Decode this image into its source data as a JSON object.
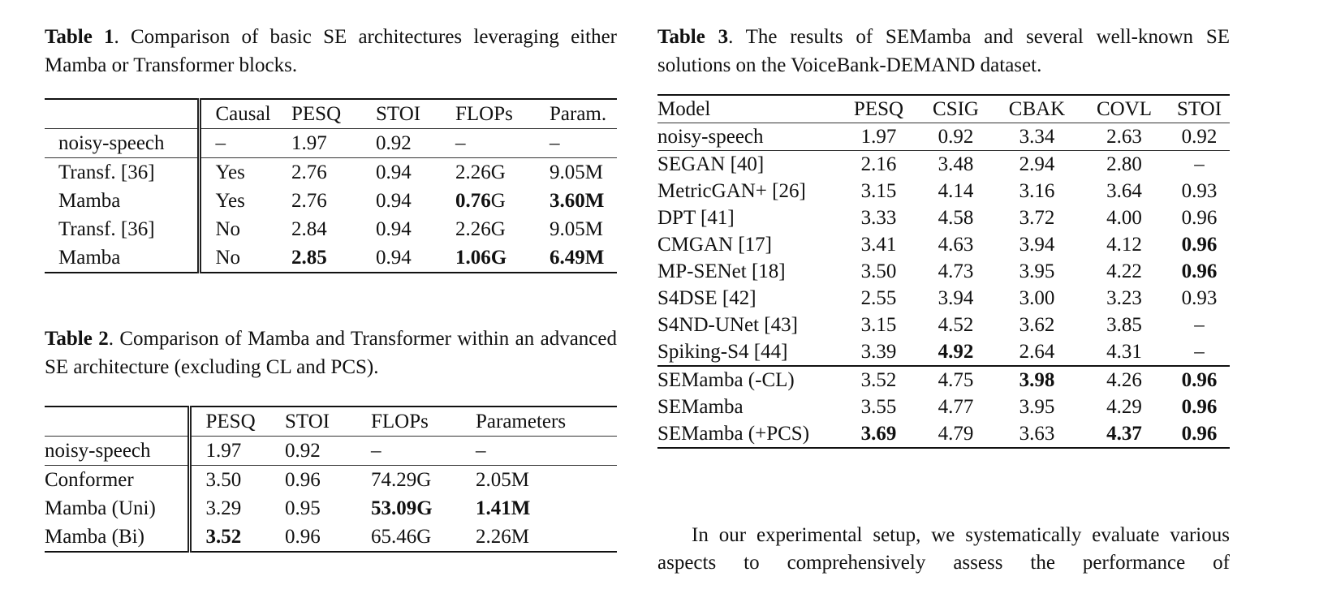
{
  "table1": {
    "label": "Table 1",
    "caption": ". Comparison of basic SE architectures leveraging either Mamba or Transformer blocks.",
    "headers": [
      "",
      "Causal",
      "PESQ",
      "STOI",
      "FLOPs",
      "Param."
    ],
    "groups": [
      [
        [
          "noisy-speech",
          "–",
          "1.97",
          "0.92",
          "–",
          "–"
        ]
      ],
      [
        [
          "Transf. [36]",
          "Yes",
          "2.76",
          "0.94",
          "2.26G",
          "9.05M"
        ],
        [
          "Mamba",
          "Yes",
          "2.76",
          "0.94",
          {
            "bold": "0.76",
            "rest": "G"
          },
          {
            "bold": "3.60M",
            "rest": ""
          }
        ],
        [
          "Transf. [36]",
          "No",
          "2.84",
          "0.94",
          "2.26G",
          "9.05M"
        ],
        [
          "Mamba",
          "No",
          {
            "bold": "2.85",
            "rest": ""
          },
          "0.94",
          {
            "bold": "1.06G",
            "rest": ""
          },
          {
            "bold": "6.49M",
            "rest": ""
          }
        ]
      ]
    ]
  },
  "table2": {
    "label": "Table 2",
    "caption": ". Comparison of Mamba and Transformer within an advanced SE architecture (excluding CL and PCS).",
    "headers": [
      "",
      "PESQ",
      "STOI",
      "FLOPs",
      "Parameters"
    ],
    "groups": [
      [
        [
          "noisy-speech",
          "1.97",
          "0.92",
          "–",
          "–"
        ]
      ],
      [
        [
          "Conformer",
          "3.50",
          "0.96",
          "74.29G",
          "2.05M"
        ],
        [
          "Mamba (Uni)",
          "3.29",
          "0.95",
          {
            "bold": "53.09G",
            "rest": ""
          },
          {
            "bold": "1.41M",
            "rest": ""
          }
        ],
        [
          "Mamba (Bi)",
          {
            "bold": "3.52",
            "rest": ""
          },
          "0.96",
          "65.46G",
          "2.26M"
        ]
      ]
    ]
  },
  "table3": {
    "label": "Table 3",
    "caption": ". The results of SEMamba and several well-known SE solutions on the VoiceBank-DEMAND dataset.",
    "headers": [
      "Model",
      "PESQ",
      "CSIG",
      "CBAK",
      "COVL",
      "STOI"
    ],
    "groups": [
      [
        [
          "noisy-speech",
          "1.97",
          "0.92",
          "3.34",
          "2.63",
          "0.92"
        ]
      ],
      [
        [
          "SEGAN [40]",
          "2.16",
          "3.48",
          "2.94",
          "2.80",
          "–"
        ],
        [
          "MetricGAN+ [26]",
          "3.15",
          "4.14",
          "3.16",
          "3.64",
          "0.93"
        ],
        [
          "DPT [41]",
          "3.33",
          "4.58",
          "3.72",
          "4.00",
          "0.96"
        ],
        [
          "CMGAN [17]",
          "3.41",
          "4.63",
          "3.94",
          "4.12",
          {
            "bold": "0.96",
            "rest": ""
          }
        ],
        [
          "MP-SENet [18]",
          "3.50",
          "4.73",
          "3.95",
          "4.22",
          {
            "bold": "0.96",
            "rest": ""
          }
        ],
        [
          "S4DSE [42]",
          "2.55",
          "3.94",
          "3.00",
          "3.23",
          "0.93"
        ],
        [
          "S4ND-UNet [43]",
          "3.15",
          "4.52",
          "3.62",
          "3.85",
          "–"
        ],
        [
          "Spiking-S4 [44]",
          "3.39",
          {
            "bold": "4.92",
            "rest": ""
          },
          "2.64",
          "4.31",
          "–"
        ]
      ],
      [
        [
          "SEMamba (-CL)",
          "3.52",
          "4.75",
          {
            "bold": "3.98",
            "rest": ""
          },
          "4.26",
          {
            "bold": "0.96",
            "rest": ""
          }
        ],
        [
          "SEMamba",
          "3.55",
          "4.77",
          "3.95",
          "4.29",
          {
            "bold": "0.96",
            "rest": ""
          }
        ],
        [
          "SEMamba (+PCS)",
          {
            "bold": "3.69",
            "rest": ""
          },
          "4.79",
          "3.63",
          {
            "bold": "4.37",
            "rest": ""
          },
          {
            "bold": "0.96",
            "rest": ""
          }
        ]
      ]
    ]
  },
  "paragraph": "In our experimental setup, we systematically evaluate various aspects to comprehensively assess the performance of"
}
